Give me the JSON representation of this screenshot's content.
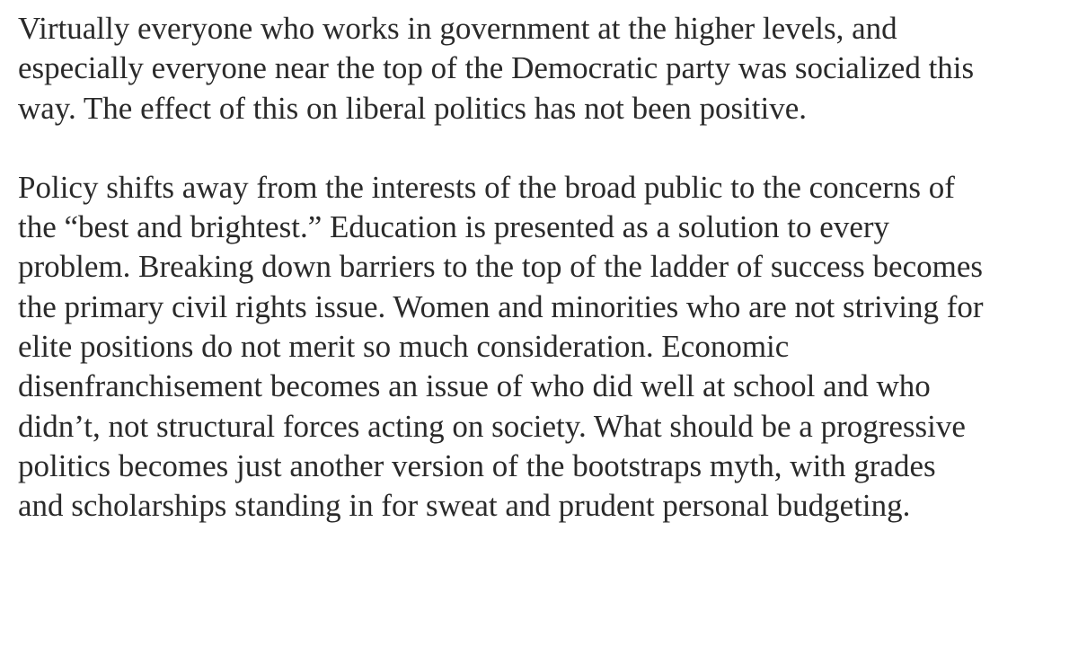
{
  "article": {
    "paragraphs": [
      {
        "lines": [
          "Virtually everyone who works in government at the higher levels, and",
          "especially everyone near the top of the Democratic party was socialized this",
          "way. The effect of this on liberal politics has not been positive."
        ]
      },
      {
        "lines": [
          "Policy shifts away from the interests of the broad public to the concerns of",
          "the “best and brightest.” Education is presented as a solution to every",
          "problem. Breaking down barriers to the top of the ladder of success becomes",
          "the primary civil rights issue. Women and minorities who are not striving for",
          "elite positions do not merit so much consideration. Economic",
          "disenfranchisement becomes an issue of who did well at school and who",
          "didn’t, not structural forces acting on society. What should be a progressive",
          "politics becomes just another version of the bootstraps myth, with grades",
          "and scholarships standing in for sweat and prudent personal budgeting."
        ]
      }
    ]
  }
}
